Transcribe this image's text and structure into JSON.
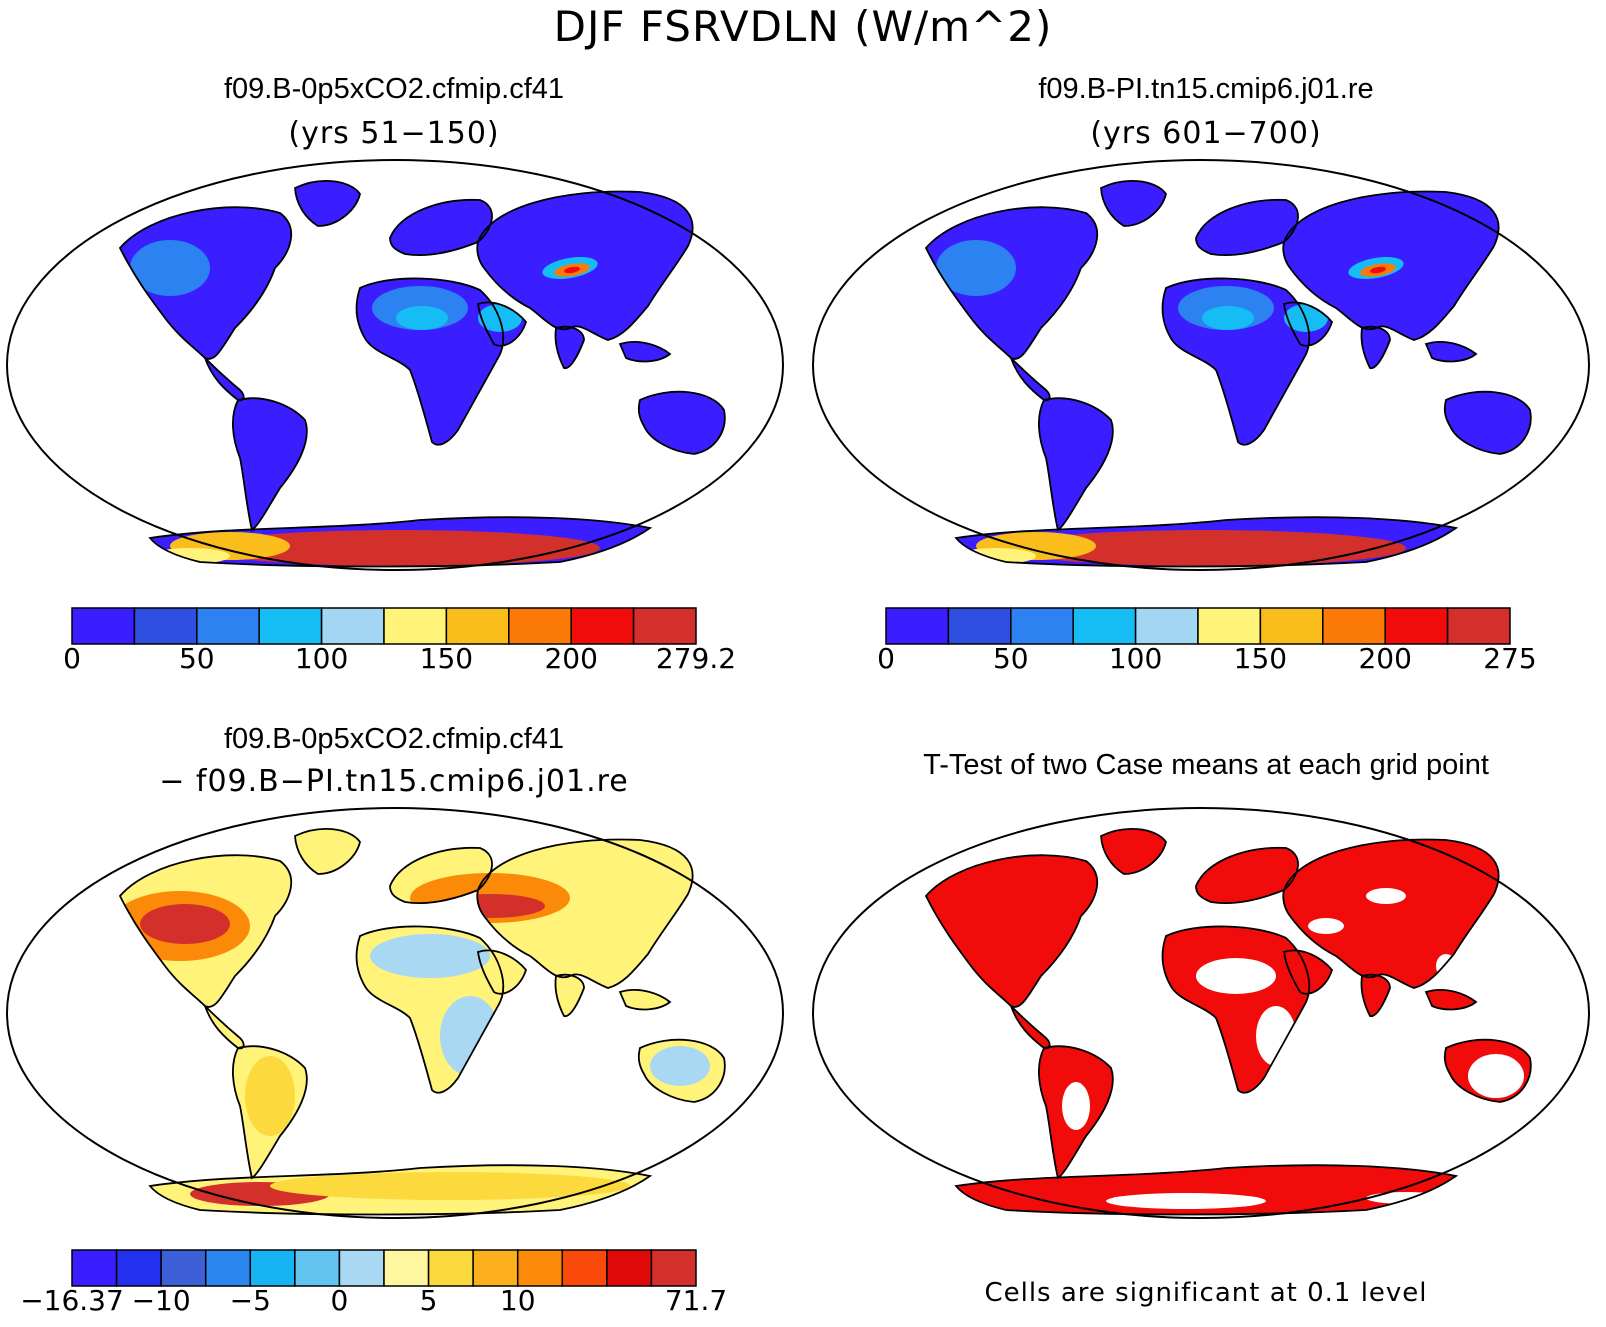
{
  "main_title": "DJF FSRVDLN (W/m^2)",
  "panels": [
    {
      "title": "f09.B-0p5xCO2.cfmip.cf41",
      "subtitle": "(yrs 51−150)",
      "colorbar": {
        "colors": [
          "#3a1eff",
          "#2f4fe0",
          "#2b82f0",
          "#16bdf5",
          "#a2d6f2",
          "#fff37a",
          "#fbbd1c",
          "#fb7a08",
          "#f20b0b",
          "#d4302b"
        ],
        "labels": [
          "0",
          "50",
          "100",
          "150",
          "200",
          "279.2"
        ],
        "label_at_boundary": [
          0,
          2,
          4,
          6,
          8,
          10
        ]
      }
    },
    {
      "title": "f09.B-PI.tn15.cmip6.j01.re",
      "subtitle": "(yrs 601−700)",
      "colorbar": {
        "colors": [
          "#3a1eff",
          "#2f4fe0",
          "#2b82f0",
          "#16bdf5",
          "#a2d6f2",
          "#fff37a",
          "#fbbd1c",
          "#fb7a08",
          "#f20b0b",
          "#d4302b"
        ],
        "labels": [
          "0",
          "50",
          "100",
          "150",
          "200",
          "275"
        ],
        "label_at_boundary": [
          0,
          2,
          4,
          6,
          8,
          10
        ]
      }
    },
    {
      "title": "f09.B-0p5xCO2.cfmip.cf41",
      "subtitle": "− f09.B−PI.tn15.cmip6.j01.re",
      "colorbar": {
        "colors": [
          "#3a1eff",
          "#2430f0",
          "#3d60d8",
          "#2b86f0",
          "#16b4f5",
          "#62c5f0",
          "#a8d8f2",
          "#fff6a0",
          "#fcd93c",
          "#fbb01c",
          "#fb8a08",
          "#f94a0c",
          "#e00a0a",
          "#d4302b"
        ],
        "labels": [
          "−16.37",
          "−10",
          "−5",
          "0",
          "5",
          "10",
          "71.7"
        ],
        "label_at_boundary": [
          0,
          2,
          4,
          6,
          8,
          10,
          14
        ]
      }
    },
    {
      "title": "T-Test of two Case means at each grid point",
      "note": "Cells are significant at 0.1 level"
    }
  ]
}
